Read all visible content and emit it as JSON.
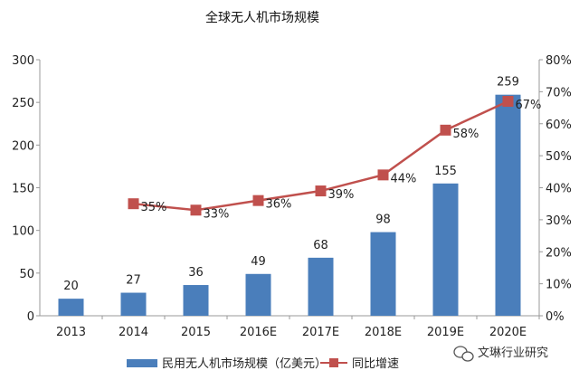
{
  "chart_data": {
    "type": "bar",
    "title": "全球无人机市场规模",
    "categories": [
      "2013",
      "2014",
      "2015",
      "2016E",
      "2017E",
      "2018E",
      "2019E",
      "2020E"
    ],
    "series": [
      {
        "name": "民用无人机市场规模（亿美元）",
        "type": "bar",
        "axis": "left",
        "color": "#4a7ebb",
        "values": [
          20,
          27,
          36,
          49,
          68,
          98,
          155,
          259
        ],
        "labels": [
          "20",
          "27",
          "36",
          "49",
          "68",
          "98",
          "155",
          "259"
        ]
      },
      {
        "name": "同比增速",
        "type": "line",
        "axis": "right",
        "color": "#c0504d",
        "values": [
          null,
          35,
          33,
          36,
          39,
          44,
          58,
          67
        ],
        "labels": [
          "",
          "35%",
          "33%",
          "36%",
          "39%",
          "44%",
          "58%",
          "67%"
        ]
      }
    ],
    "ylim": [
      0,
      300
    ],
    "yticks": [
      "0",
      "50",
      "100",
      "150",
      "200",
      "250",
      "300"
    ],
    "y2lim": [
      0,
      80
    ],
    "y2ticks": [
      "0%",
      "10%",
      "20%",
      "30%",
      "40%",
      "50%",
      "60%",
      "70%",
      "80%"
    ],
    "grid": false,
    "legend": "bottom"
  },
  "watermark": "文琳行业研究",
  "watermark_icon": "wechat-icon"
}
